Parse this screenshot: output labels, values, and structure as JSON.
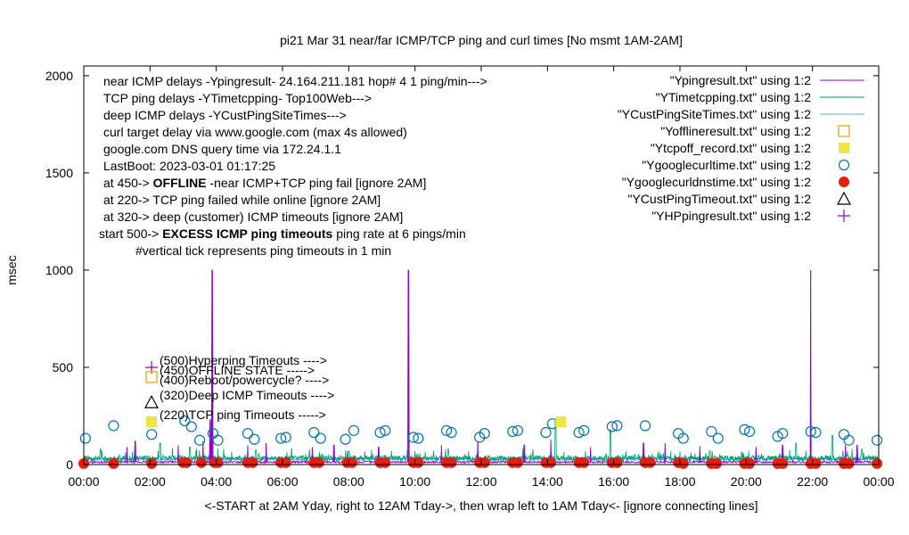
{
  "chart_data": {
    "type": "line",
    "title": "pi21 Mar 31  near/far ICMP/TCP ping and curl times [No msmt 1AM-2AM]",
    "xlabel": "<-START at 2AM Yday, right to 12AM Tday->, then wrap left to 1AM Tday<- [ignore connecting lines]",
    "ylabel": "msec",
    "xlim": [
      0,
      24
    ],
    "ylim": [
      0,
      2050
    ],
    "x_tick_labels": [
      "00:00",
      "02:00",
      "04:00",
      "06:00",
      "08:00",
      "10:00",
      "12:00",
      "14:00",
      "16:00",
      "18:00",
      "20:00",
      "22:00",
      "00:00"
    ],
    "y_ticks": [
      0,
      500,
      1000,
      1500,
      2000
    ],
    "grid": false,
    "legend_position": "top-right",
    "notes": [
      "near ICMP delays -Ypingresult- 24.164.211.181 hop# 4 1 ping/min--->",
      "TCP ping delays -YTimetcpping- Top100Web--->",
      "deep ICMP delays -YCustPingSiteTimes--->",
      "curl target delay via www.google.com (max 4s allowed)",
      "google.com DNS query time via 172.24.1.1",
      "LastBoot: 2023-03-01 01:17:25"
    ],
    "threshold_notes": [
      {
        "prefix": "at 450-> ",
        "bold": "OFFLINE",
        "suffix": " -near ICMP+TCP ping fail [ignore 2AM]"
      },
      {
        "prefix": "at 220-> TCP ping failed while online [ignore 2AM]",
        "bold": "",
        "suffix": ""
      },
      {
        "prefix": "at 320-> deep (customer) ICMP timeouts [ignore 2AM]",
        "bold": "",
        "suffix": ""
      },
      {
        "prefix": "start 500-> ",
        "bold": "EXCESS ICMP ping timeouts",
        "suffix": " ping rate at 6 pings/min"
      }
    ],
    "tick_note": "#vertical tick represents ping timeouts in 1 min",
    "inline_keys": [
      {
        "symbol": "plus",
        "color": "#9400d3",
        "y": 500,
        "text": "(500)Hyperping Timeouts ---->"
      },
      {
        "symbol": "square",
        "color": "#e69f00",
        "y": 450,
        "text": "(450)OFFLINE STATE ----->"
      },
      {
        "symbol": "none",
        "color": "#000000",
        "y": 400,
        "text": "(400)Reboot/powercycle? ---->"
      },
      {
        "symbol": "triangle",
        "color": "#000000",
        "y": 320,
        "text": "(320)Deep ICMP Timeouts ---->"
      },
      {
        "symbol": "filledsquare",
        "color": "#f0e442",
        "y": 220,
        "text": "(220)TCP ping Timeouts ----->"
      }
    ],
    "series": [
      {
        "name": "\"Ypingresult.txt\" using 1:2",
        "style": "line",
        "color": "#9400d3"
      },
      {
        "name": "\"YTimetcpping.txt\" using 1:2",
        "style": "line",
        "color": "#009e73"
      },
      {
        "name": "\"YCustPingSiteTimes.txt\" using 1:2",
        "style": "line",
        "color": "#56b4e9"
      },
      {
        "name": "\"Yofflineresult.txt\" using 1:2",
        "style": "square",
        "color": "#e69f00"
      },
      {
        "name": "\"Ytcpoff_record.txt\" using 1:2",
        "style": "filledsquare",
        "color": "#f0e442"
      },
      {
        "name": "\"Ygooglecurltime.txt\" using 1:2",
        "style": "circle",
        "color": "#0072b2"
      },
      {
        "name": "\"Ygooglecurldnstime.txt\" using 1:2",
        "style": "filledcircle",
        "color": "#e51e10"
      },
      {
        "name": "\"YCustPingTimeout.txt\" using 1:2",
        "style": "triangle",
        "color": "#000000"
      },
      {
        "name": "\"YHPpingresult.txt\" using 1:2",
        "style": "plus",
        "color": "#9400d3"
      }
    ],
    "spikes": [
      {
        "x": 1.3,
        "y": 90
      },
      {
        "x": 1.55,
        "y": 120
      },
      {
        "x": 2.85,
        "y": 100
      },
      {
        "x": 3.6,
        "y": 120
      },
      {
        "x": 3.82,
        "y": 230
      },
      {
        "x": 3.88,
        "y": 1000
      },
      {
        "x": 4.95,
        "y": 100
      },
      {
        "x": 5.5,
        "y": 110
      },
      {
        "x": 6.9,
        "y": 90
      },
      {
        "x": 7.55,
        "y": 100
      },
      {
        "x": 8.9,
        "y": 90
      },
      {
        "x": 9.8,
        "y": 1000
      },
      {
        "x": 10.8,
        "y": 100
      },
      {
        "x": 11.9,
        "y": 120
      },
      {
        "x": 13.3,
        "y": 100
      },
      {
        "x": 14.1,
        "y": 130
      },
      {
        "x": 15.3,
        "y": 90
      },
      {
        "x": 16.9,
        "y": 110
      },
      {
        "x": 17.55,
        "y": 110
      },
      {
        "x": 18.6,
        "y": 95
      },
      {
        "x": 20.3,
        "y": 90
      },
      {
        "x": 21.1,
        "y": 100
      },
      {
        "x": 21.95,
        "y": 1000
      },
      {
        "x": 23.0,
        "y": 100
      },
      {
        "x": 23.35,
        "y": 100
      }
    ],
    "tcp_peaks": [
      {
        "x": 0.5,
        "y": 80
      },
      {
        "x": 2.3,
        "y": 110
      },
      {
        "x": 3.2,
        "y": 90
      },
      {
        "x": 5.2,
        "y": 75
      },
      {
        "x": 8.0,
        "y": 70
      },
      {
        "x": 11.0,
        "y": 80
      },
      {
        "x": 14.25,
        "y": 230
      },
      {
        "x": 15.9,
        "y": 180
      },
      {
        "x": 18.9,
        "y": 70
      },
      {
        "x": 21.5,
        "y": 110
      },
      {
        "x": 22.6,
        "y": 150
      },
      {
        "x": 23.5,
        "y": 80
      }
    ],
    "curl_points": [
      {
        "x": 0.05,
        "y": 135
      },
      {
        "x": 0.9,
        "y": 200
      },
      {
        "x": 2.05,
        "y": 155
      },
      {
        "x": 3.05,
        "y": 225
      },
      {
        "x": 3.25,
        "y": 195
      },
      {
        "x": 3.5,
        "y": 125
      },
      {
        "x": 3.9,
        "y": 160
      },
      {
        "x": 4.05,
        "y": 125
      },
      {
        "x": 4.95,
        "y": 160
      },
      {
        "x": 5.15,
        "y": 130
      },
      {
        "x": 5.95,
        "y": 135
      },
      {
        "x": 6.1,
        "y": 140
      },
      {
        "x": 6.95,
        "y": 165
      },
      {
        "x": 7.15,
        "y": 135
      },
      {
        "x": 7.9,
        "y": 130
      },
      {
        "x": 8.15,
        "y": 175
      },
      {
        "x": 8.95,
        "y": 165
      },
      {
        "x": 9.1,
        "y": 175
      },
      {
        "x": 9.95,
        "y": 140
      },
      {
        "x": 10.1,
        "y": 135
      },
      {
        "x": 10.95,
        "y": 175
      },
      {
        "x": 11.1,
        "y": 165
      },
      {
        "x": 11.95,
        "y": 140
      },
      {
        "x": 12.1,
        "y": 160
      },
      {
        "x": 12.95,
        "y": 170
      },
      {
        "x": 13.1,
        "y": 175
      },
      {
        "x": 13.95,
        "y": 165
      },
      {
        "x": 14.15,
        "y": 210
      },
      {
        "x": 14.95,
        "y": 165
      },
      {
        "x": 15.1,
        "y": 175
      },
      {
        "x": 15.95,
        "y": 195
      },
      {
        "x": 16.1,
        "y": 200
      },
      {
        "x": 16.95,
        "y": 200
      },
      {
        "x": 17.95,
        "y": 160
      },
      {
        "x": 18.1,
        "y": 135
      },
      {
        "x": 18.95,
        "y": 170
      },
      {
        "x": 19.15,
        "y": 135
      },
      {
        "x": 19.95,
        "y": 180
      },
      {
        "x": 20.1,
        "y": 170
      },
      {
        "x": 20.95,
        "y": 145
      },
      {
        "x": 21.1,
        "y": 160
      },
      {
        "x": 21.95,
        "y": 170
      },
      {
        "x": 22.1,
        "y": 165
      },
      {
        "x": 22.95,
        "y": 155
      },
      {
        "x": 23.1,
        "y": 125
      },
      {
        "x": 23.95,
        "y": 125
      }
    ],
    "dns_points": [
      {
        "x": 0.0,
        "y": 5
      },
      {
        "x": 0.9,
        "y": 5
      },
      {
        "x": 2.05,
        "y": 5
      },
      {
        "x": 3.0,
        "y": 10
      },
      {
        "x": 3.1,
        "y": 10
      },
      {
        "x": 3.55,
        "y": 10
      },
      {
        "x": 3.95,
        "y": 10
      },
      {
        "x": 4.05,
        "y": 10
      },
      {
        "x": 4.95,
        "y": 10
      },
      {
        "x": 5.1,
        "y": 10
      },
      {
        "x": 5.95,
        "y": 10
      },
      {
        "x": 6.1,
        "y": 10
      },
      {
        "x": 6.95,
        "y": 10
      },
      {
        "x": 7.1,
        "y": 10
      },
      {
        "x": 7.95,
        "y": 10
      },
      {
        "x": 8.1,
        "y": 10
      },
      {
        "x": 8.95,
        "y": 10
      },
      {
        "x": 9.1,
        "y": 10
      },
      {
        "x": 9.95,
        "y": 10
      },
      {
        "x": 10.1,
        "y": 10
      },
      {
        "x": 10.95,
        "y": 10
      },
      {
        "x": 11.1,
        "y": 10
      },
      {
        "x": 11.95,
        "y": 10
      },
      {
        "x": 12.1,
        "y": 10
      },
      {
        "x": 12.95,
        "y": 10
      },
      {
        "x": 13.1,
        "y": 10
      },
      {
        "x": 13.95,
        "y": 10
      },
      {
        "x": 14.1,
        "y": 10
      },
      {
        "x": 14.95,
        "y": 10
      },
      {
        "x": 15.1,
        "y": 10
      },
      {
        "x": 15.95,
        "y": 10
      },
      {
        "x": 16.1,
        "y": 10
      },
      {
        "x": 16.95,
        "y": 10
      },
      {
        "x": 17.1,
        "y": 10
      },
      {
        "x": 17.95,
        "y": 10
      },
      {
        "x": 18.1,
        "y": 5
      },
      {
        "x": 18.95,
        "y": 5
      },
      {
        "x": 19.1,
        "y": 5
      },
      {
        "x": 19.95,
        "y": 5
      },
      {
        "x": 20.1,
        "y": 5
      },
      {
        "x": 20.95,
        "y": 5
      },
      {
        "x": 21.1,
        "y": 5
      },
      {
        "x": 21.95,
        "y": 5
      },
      {
        "x": 22.1,
        "y": 5
      },
      {
        "x": 22.95,
        "y": 5
      },
      {
        "x": 23.1,
        "y": 5
      },
      {
        "x": 23.95,
        "y": 5
      }
    ],
    "tcp_offline_points": [
      {
        "x": 14.4,
        "y": 220
      }
    ]
  }
}
